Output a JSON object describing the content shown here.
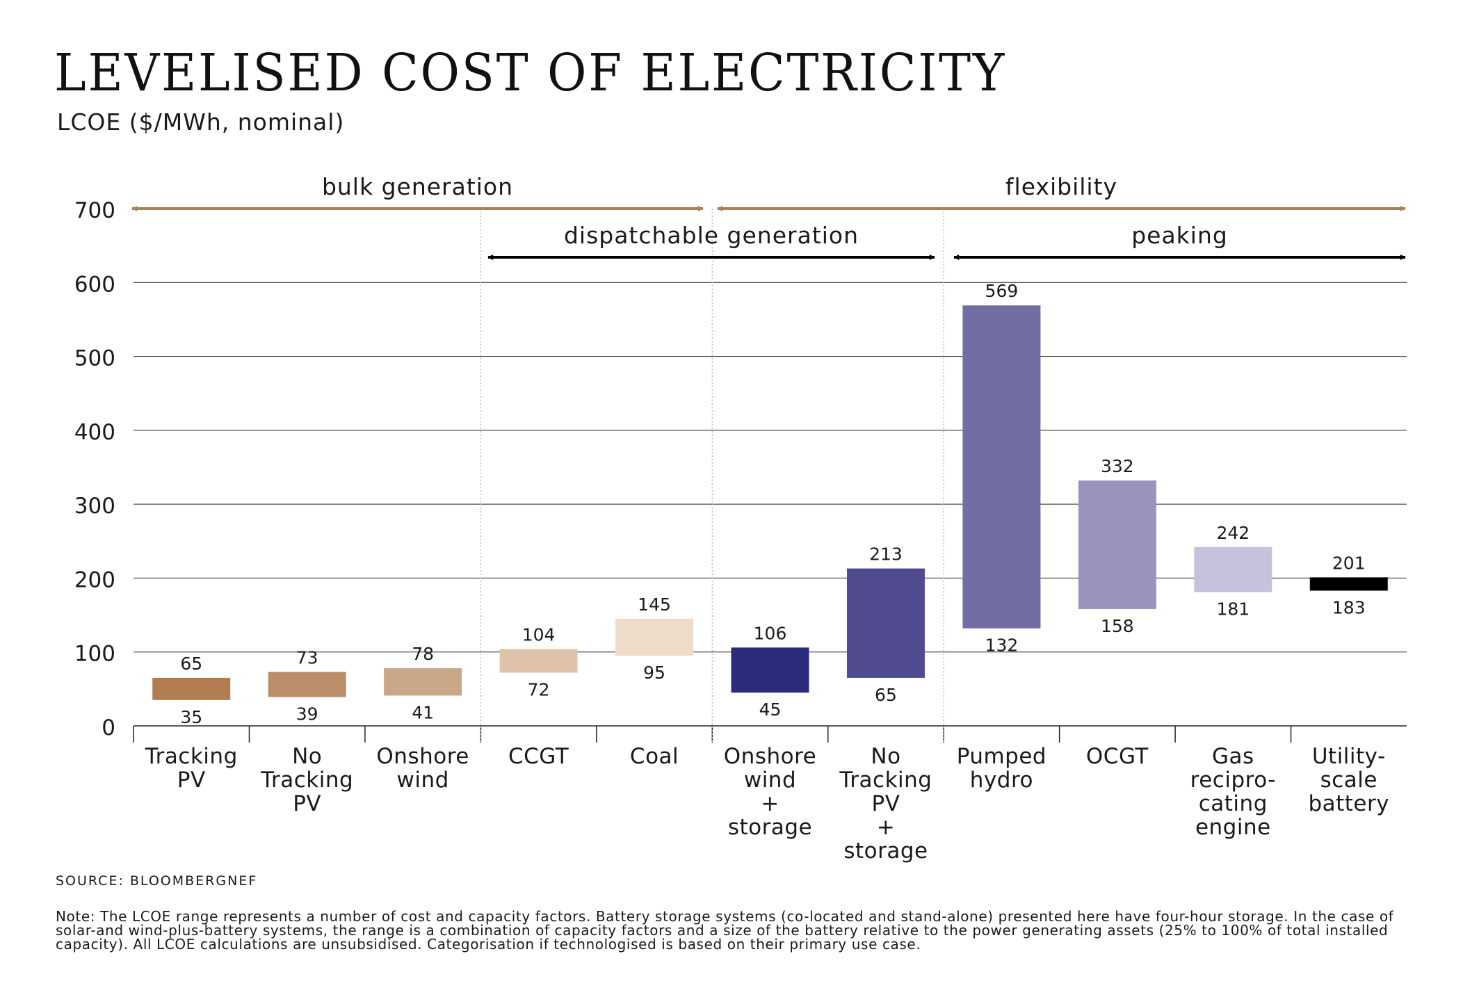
{
  "title": "LEVELISED COST OF ELECTRICITY",
  "subtitle": "LCOE ($/MWh, nominal)",
  "source": "SOURCE: BLOOMBERGNEF",
  "note": "Note: The LCOE range represents a number of cost and capacity factors. Battery storage systems (co-located and stand-alone) presented here have four-hour storage. In the case of solar-and wind-plus-battery systems, the range is a combination of capacity factors and a size of the battery relative to the power generating assets (25% to 100% of total installed capacity). All LCOE calculations are unsubsidised. Categorisation if technologised is based on their primary use case.",
  "chart_data": {
    "type": "bar",
    "subtype": "floating-range",
    "title": "LEVELISED COST OF ELECTRICITY",
    "ylabel": "LCOE ($/MWh, nominal)",
    "ylim": [
      0,
      700
    ],
    "yticks": [
      0,
      100,
      200,
      300,
      400,
      500,
      600,
      700
    ],
    "grid": true,
    "categories": [
      "Tracking PV",
      "No Tracking PV",
      "Onshore wind",
      "CCGT",
      "Coal",
      "Onshore wind + storage",
      "No Tracking PV + storage",
      "Pumped hydro",
      "OCGT",
      "Gas recipro-cating engine",
      "Utility-scale battery"
    ],
    "category_label_lines": [
      [
        "Tracking",
        "PV"
      ],
      [
        "No",
        "Tracking",
        "PV"
      ],
      [
        "Onshore",
        "wind"
      ],
      [
        "CCGT"
      ],
      [
        "Coal"
      ],
      [
        "Onshore",
        "wind",
        "+",
        "storage"
      ],
      [
        "No",
        "Tracking",
        "PV",
        "+",
        "storage"
      ],
      [
        "Pumped",
        "hydro"
      ],
      [
        "OCGT"
      ],
      [
        "Gas",
        "recipro-",
        "cating",
        "engine"
      ],
      [
        "Utility-",
        "scale",
        "battery"
      ]
    ],
    "low": [
      35,
      39,
      41,
      72,
      95,
      45,
      65,
      132,
      158,
      181,
      183
    ],
    "high": [
      65,
      73,
      78,
      104,
      145,
      106,
      213,
      569,
      332,
      242,
      201
    ],
    "colors": [
      "#b07c50",
      "#ba8e69",
      "#cba789",
      "#dec3aa",
      "#eddcca",
      "#2b2c7c",
      "#4f4b8e",
      "#726ea3",
      "#9994bd",
      "#c6c2dc",
      "#000000"
    ],
    "groups": [
      {
        "label": "bulk generation",
        "color": "#a9825a",
        "from": 0,
        "to": 4
      },
      {
        "label": "flexibility",
        "color": "#a9825a",
        "from": 5,
        "to": 10
      },
      {
        "label": "dispatchable generation",
        "color": "#000000",
        "from": 3,
        "to": 6
      },
      {
        "label": "peaking",
        "color": "#000000",
        "from": 7,
        "to": 10
      }
    ]
  }
}
